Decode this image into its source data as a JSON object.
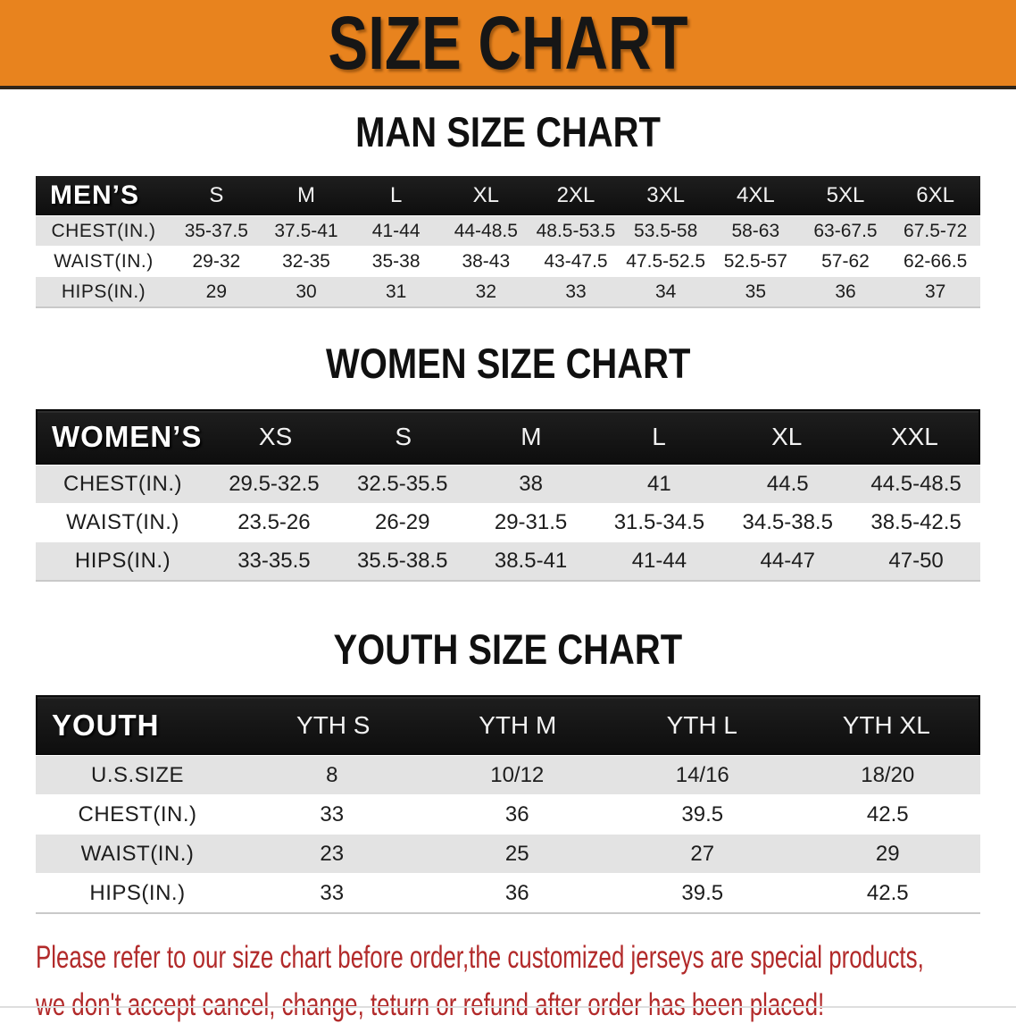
{
  "banner": {
    "title": "SIZE CHART",
    "bg_color": "#E8831E",
    "text_color": "#161616"
  },
  "sections": [
    {
      "heading": "MAN SIZE CHART",
      "table": {
        "header_label": "MEN’S",
        "columns": [
          "S",
          "M",
          "L",
          "XL",
          "2XL",
          "3XL",
          "4XL",
          "5XL",
          "6XL"
        ],
        "rows": [
          {
            "label": "CHEST(IN.)",
            "values": [
              "35-37.5",
              "37.5-41",
              "41-44",
              "44-48.5",
              "48.5-53.5",
              "53.5-58",
              "58-63",
              "63-67.5",
              "67.5-72"
            ]
          },
          {
            "label": "WAIST(IN.)",
            "values": [
              "29-32",
              "32-35",
              "35-38",
              "38-43",
              "43-47.5",
              "47.5-52.5",
              "52.5-57",
              "57-62",
              "62-66.5"
            ]
          },
          {
            "label": "HIPS(IN.)",
            "values": [
              "29",
              "30",
              "31",
              "32",
              "33",
              "34",
              "35",
              "36",
              "37"
            ]
          }
        ]
      }
    },
    {
      "heading": "WOMEN SIZE CHART",
      "table": {
        "header_label": "WOMEN’S",
        "columns": [
          "XS",
          "S",
          "M",
          "L",
          "XL",
          "XXL"
        ],
        "rows": [
          {
            "label": "CHEST(IN.)",
            "values": [
              "29.5-32.5",
              "32.5-35.5",
              "38",
              "41",
              "44.5",
              "44.5-48.5"
            ]
          },
          {
            "label": "WAIST(IN.)",
            "values": [
              "23.5-26",
              "26-29",
              "29-31.5",
              "31.5-34.5",
              "34.5-38.5",
              "38.5-42.5"
            ]
          },
          {
            "label": "HIPS(IN.)",
            "values": [
              "33-35.5",
              "35.5-38.5",
              "38.5-41",
              "41-44",
              "44-47",
              "47-50"
            ]
          }
        ]
      }
    },
    {
      "heading": "YOUTH SIZE CHART",
      "table": {
        "header_label": "YOUTH",
        "columns": [
          "YTH S",
          "YTH M",
          "YTH L",
          "YTH XL"
        ],
        "rows": [
          {
            "label": "U.S.SIZE",
            "values": [
              "8",
              "10/12",
              "14/16",
              "18/20"
            ]
          },
          {
            "label": "CHEST(IN.)",
            "values": [
              "33",
              "36",
              "39.5",
              "42.5"
            ]
          },
          {
            "label": "WAIST(IN.)",
            "values": [
              "23",
              "25",
              "27",
              "29"
            ]
          },
          {
            "label": "HIPS(IN.)",
            "values": [
              "33",
              "36",
              "39.5",
              "42.5"
            ]
          }
        ]
      }
    }
  ],
  "disclaimer": {
    "line1": "Please refer to our size chart before order,the customized jerseys are special products,",
    "line2": "we don't accept cancel, change, teturn or refund after order has been placed!",
    "color": "#B22A2A"
  }
}
